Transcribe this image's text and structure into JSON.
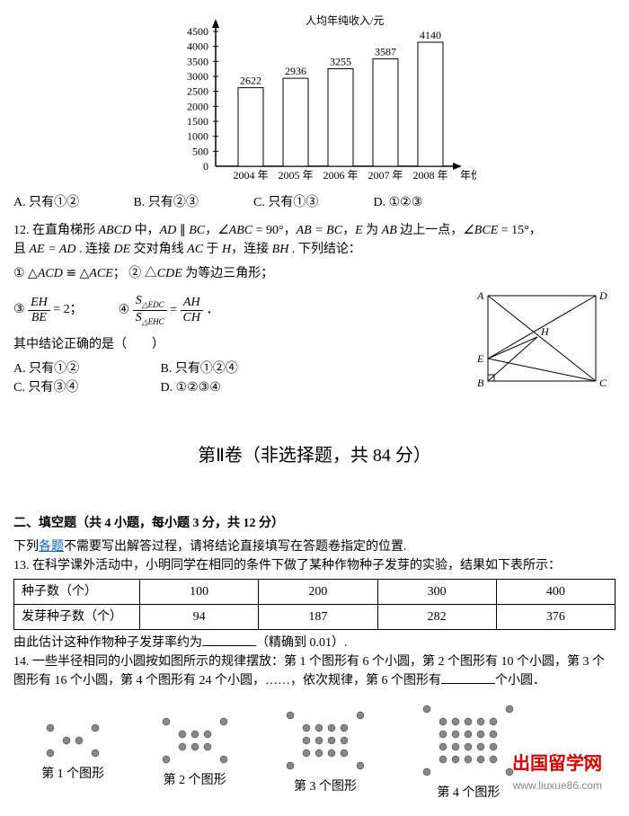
{
  "chart": {
    "ylabel": "人均年纯收入/元",
    "xlabel": "年份",
    "ylim": [
      0,
      4500
    ],
    "ytick_step": 500,
    "categories": [
      "2004 年",
      "2005 年",
      "2006 年",
      "2007 年",
      "2008 年"
    ],
    "values": [
      2622,
      2936,
      3255,
      3587,
      4140
    ],
    "bar_color": "#ffffff",
    "bar_stroke": "#000000",
    "bar_width": 0.55
  },
  "q11_options": {
    "a": "A.  只有①②",
    "b": "B.  只有②③",
    "c": "C.  只有①③",
    "d": "D.  ①②③"
  },
  "q12": {
    "stem1": "12. 在直角梯形 ",
    "abcd": "ABCD",
    "mid1": " 中，",
    "ad": "AD",
    "par": " ∥ ",
    "bc": "BC",
    "c1": "，",
    "ang1": "∠ABC",
    "eq90": " = 90°，",
    "abeq": "AB = BC",
    "c2": "，",
    "e": "E",
    "mid2": " 为 ",
    "ab": "AB",
    "mid3": " 边上一点，",
    "ang2": "∠BCE",
    "eq15": " = 15°，",
    "stem2": "且 ",
    "aead": "AE = AD",
    "mid4": " . 连接 ",
    "de": "DE",
    "mid5": " 交对角线 ",
    "ac": "AC",
    "mid6": " 于 ",
    "h": "H",
    "mid7": "，连接 ",
    "bh": "BH",
    "mid8": " . 下列结论：",
    "c_1a": "① △",
    "acd": "ACD",
    "cong": " ≌ △",
    "ace": "ACE",
    "c_1b": "；",
    "c_2a": "② △",
    "cde": "CDE",
    "c_2b": " 为等边三角形；",
    "c_3a": "③",
    "eh": "EH",
    "be": "BE",
    "c_3b": " = 2；",
    "c_4a": "④",
    "sedc": "S",
    "edc": "△EDC",
    "sehc": "S",
    "ehc": "△EHC",
    "ah": "AH",
    "ch": "CH",
    "c_4b": "．",
    "correct": "其中结论正确的是（　　）",
    "opts": {
      "a": "A.  只有①②",
      "b": "B.  只有①②④",
      "c": "C.  只有③④",
      "d": "D.  ①②③④"
    },
    "fig": {
      "A": [
        0,
        0
      ],
      "D": [
        120,
        0
      ],
      "B": [
        0,
        95
      ],
      "C": [
        120,
        95
      ],
      "E": [
        0,
        70
      ],
      "H": [
        55,
        46
      ],
      "labels": {
        "A": "A",
        "B": "B",
        "C": "C",
        "D": "D",
        "E": "E",
        "H": "H"
      }
    }
  },
  "section2": "第Ⅱ卷（非选择题，共 84 分）",
  "fill": {
    "title": "二、填空题（共 4 小题，每小题 3 分，共 12 分）",
    "note1": "下列",
    "link": "各题",
    "note2": "不需要写出解答过程，请将结论直接填写在答题卷指定的位置.",
    "q13": "13. 在科学课外活动中，小明同学在相同的条件下做了某种作物种子发芽的实验，结果如下表所示：",
    "table": {
      "r1": [
        "种子数（个）",
        "100",
        "200",
        "300",
        "400"
      ],
      "r2": [
        "发芽种子数（个）",
        "94",
        "187",
        "282",
        "376"
      ]
    },
    "q13b": "由此估计这种作物种子发芽率约为",
    "q13c": "（精确到 0.01）.",
    "q14": "14. 一些半径相同的小圆按如图所示的规律摆放：第 1 个图形有 6 个小圆，第 2 个图形有 10 个小圆，第 3 个图形有 16 个小圆，第 4 个图形有 24 个小圆，……，依次规律，第 6 个图形有",
    "q14b": "个小圆．",
    "plabels": [
      "第 1 个图形",
      "第 2 个图形",
      "第 3 个图形",
      "第 4 个图形"
    ],
    "ellipsis": "…"
  },
  "watermark": {
    "cn": "出国留学网",
    "url": "www.liuxue86.com"
  }
}
